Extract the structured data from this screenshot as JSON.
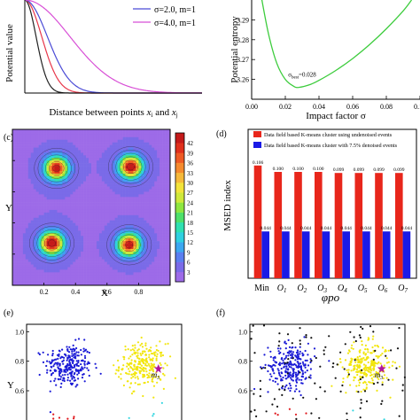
{
  "chart_data": [
    {
      "id": "a",
      "type": "line",
      "ylabel": "Potential value",
      "xlabel_parts": [
        "Distance between points ",
        "x",
        "i",
        " and ",
        "x",
        "j"
      ],
      "xlim": [
        0,
        10
      ],
      "ylim": [
        0,
        1
      ],
      "series": [
        {
          "name": "",
          "color": "#222222",
          "sigma": 1.0,
          "m": 1
        },
        {
          "name": "",
          "color": "#e8374a",
          "sigma": 1.5,
          "m": 1
        },
        {
          "name": "σ=2.0, m=1",
          "color": "#4b4bd6",
          "sigma": 2.0,
          "m": 1
        },
        {
          "name": "σ=4.0, m=1",
          "color": "#d84fd6",
          "sigma": 4.0,
          "m": 1
        }
      ]
    },
    {
      "id": "b",
      "type": "line",
      "ylabel": "Potential entropy",
      "xlabel": "Impact factor σ",
      "xlim": [
        0,
        0.1
      ],
      "ylim": [
        3.25,
        3.3
      ],
      "xticks": [
        0.0,
        0.02,
        0.04,
        0.06,
        0.08,
        0.1
      ],
      "xtick_labels": [
        "0.00",
        "0.02",
        "0.04",
        "0.06",
        "0.08",
        "0.10"
      ],
      "yticks": [
        3.26,
        3.27,
        3.28,
        3.29
      ],
      "ytick_labels": [
        "3.26",
        "3.27",
        "3.28",
        "3.29"
      ],
      "annotation_parts": [
        "σ",
        "best",
        "=0.028"
      ],
      "min_x": 0.028,
      "min_y": 3.256,
      "x": [
        0.005,
        0.01,
        0.015,
        0.02,
        0.025,
        0.028,
        0.035,
        0.04,
        0.05,
        0.06,
        0.07,
        0.08,
        0.09,
        0.095
      ],
      "y": [
        3.305,
        3.283,
        3.268,
        3.26,
        3.2565,
        3.256,
        3.2575,
        3.2595,
        3.2645,
        3.2705,
        3.2775,
        3.2855,
        3.2945,
        3.3
      ],
      "color": "#3dcc3d"
    },
    {
      "id": "c",
      "type": "heatmap",
      "panel_label": "(c)",
      "xlabel": "X",
      "ylabel": "Y",
      "xlim": [
        0,
        1
      ],
      "ylim": [
        0,
        1
      ],
      "xticks": [
        0.2,
        0.4,
        0.6,
        0.8
      ],
      "xtick_labels": [
        "0.2",
        "0.4",
        "0.6",
        "0.8"
      ],
      "yticks": [
        0.2,
        0.4,
        0.6,
        0.8
      ],
      "ytick_labels": [
        "0.2",
        "0.4",
        "0.6",
        "0.8"
      ],
      "colorbar_ticks": [
        3,
        6,
        9,
        12,
        15,
        18,
        21,
        24,
        27,
        30,
        33,
        36,
        39,
        42
      ],
      "colorbar_labels": [
        "3",
        "6",
        "9",
        "12",
        "15",
        "18",
        "21",
        "24",
        "27",
        "30",
        "33",
        "36",
        "39",
        "42"
      ],
      "colorbar_range": [
        0,
        45
      ],
      "peaks": [
        {
          "x": 0.28,
          "y": 0.75,
          "value": 40
        },
        {
          "x": 0.75,
          "y": 0.76,
          "value": 42
        },
        {
          "x": 0.25,
          "y": 0.27,
          "value": 44
        },
        {
          "x": 0.74,
          "y": 0.26,
          "value": 39
        }
      ]
    },
    {
      "id": "d",
      "type": "bar",
      "panel_label": "(d)",
      "ylabel": "MSED index",
      "xlabel": "φpo",
      "ylim": [
        0,
        0.14
      ],
      "categories": [
        "Min",
        "O1",
        "O2",
        "O3",
        "O4",
        "O5",
        "O6",
        "O7"
      ],
      "category_parts": [
        [
          "Min",
          ""
        ],
        [
          "O",
          "1"
        ],
        [
          "O",
          "2"
        ],
        [
          "O",
          "3"
        ],
        [
          "O",
          "4"
        ],
        [
          "O",
          "5"
        ],
        [
          "O",
          "6"
        ],
        [
          "O",
          "7"
        ]
      ],
      "series": [
        {
          "name": "Data field based K-means cluster using undenoised events",
          "color": "#e8261b",
          "values": [
            0.106,
            0.1,
            0.1,
            0.1,
            0.099,
            0.099,
            0.099,
            0.099
          ],
          "labels": [
            "0.106",
            "0.100",
            "0.100",
            "0.100",
            "0.099",
            "0.099",
            "0.099",
            "0.099"
          ]
        },
        {
          "name": "Data field based K-means cluster with 7.5% denoised events",
          "color": "#1a1ae6",
          "values": [
            0.044,
            0.044,
            0.044,
            0.044,
            0.044,
            0.044,
            0.044,
            0.044
          ],
          "labels": [
            "0.044",
            "0.044",
            "0.044",
            "0.044",
            "0.044",
            "0.044",
            "0.044",
            "0.044"
          ]
        }
      ]
    },
    {
      "id": "e",
      "type": "scatter",
      "panel_label": "(e)",
      "ylabel": "Y",
      "ylim": [
        0.15,
        1.05
      ],
      "yticks": [
        0.2,
        0.4,
        0.6,
        0.8,
        1.0
      ],
      "ytick_labels": [
        "0.2",
        "0.4",
        "0.6",
        "0.8",
        "1.0"
      ],
      "clusters": [
        {
          "color": "#1a1ad6",
          "cx": 0.27,
          "cy": 0.77,
          "n": 260
        },
        {
          "color": "#f2e60f",
          "cx": 0.75,
          "cy": 0.77,
          "n": 260
        },
        {
          "color": "#e0161b",
          "cx": 0.25,
          "cy": 0.26,
          "n": 260
        },
        {
          "color": "#33d6e0",
          "cx": 0.75,
          "cy": 0.26,
          "n": 260
        }
      ],
      "center_label_parts": [
        "m",
        "3"
      ],
      "noise_count": 0
    },
    {
      "id": "f",
      "type": "scatter",
      "panel_label": "(f)",
      "ylim": [
        0.15,
        1.05
      ],
      "yticks": [
        0.2,
        0.4,
        0.6,
        0.8,
        1.0
      ],
      "ytick_labels": [
        "0.2",
        "0.4",
        "0.6",
        "0.8",
        "1.0"
      ],
      "clusters": [
        {
          "color": "#1a1ad6",
          "cx": 0.27,
          "cy": 0.77,
          "n": 260
        },
        {
          "color": "#f2e60f",
          "cx": 0.75,
          "cy": 0.77,
          "n": 260
        },
        {
          "color": "#e0161b",
          "cx": 0.25,
          "cy": 0.26,
          "n": 260
        },
        {
          "color": "#33d6e0",
          "cx": 0.75,
          "cy": 0.26,
          "n": 260
        }
      ],
      "center_label_parts": [
        "m",
        "3"
      ],
      "noise_count": 150
    }
  ]
}
